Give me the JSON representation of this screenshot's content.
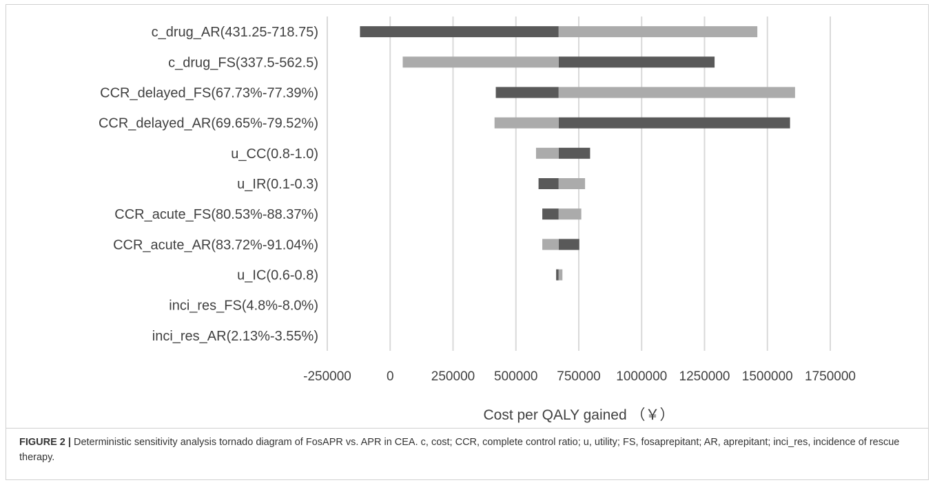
{
  "chart_data": {
    "type": "bar",
    "orientation": "horizontal",
    "subtype": "tornado",
    "base_value": 670000,
    "categories": [
      "c_drug_AR(431.25-718.75)",
      "c_drug_FS(337.5-562.5)",
      "CCR_delayed_FS(67.73%-77.39%)",
      "CCR_delayed_AR(69.65%-79.52%)",
      "u_CC(0.8-1.0)",
      "u_IR(0.1-0.3)",
      "CCR_acute_FS(80.53%-88.37%)",
      "CCR_acute_AR(83.72%-91.04%)",
      "u_IC(0.6-0.8)",
      "inci_res_FS(4.8%-8.0%)",
      "inci_res_AR(2.13%-3.55%)"
    ],
    "series": [
      {
        "color": "#595959",
        "values": [
          -120000,
          1290000,
          420000,
          1590000,
          795000,
          590000,
          605000,
          752000,
          660000,
          670000,
          670000
        ]
      },
      {
        "color": "#ababab",
        "values": [
          1460000,
          50000,
          1610000,
          415000,
          580000,
          775000,
          760000,
          605000,
          685000,
          670000,
          670000
        ]
      }
    ],
    "xlim": [
      -250000,
      1750000
    ],
    "xticks": [
      -250000,
      0,
      250000,
      500000,
      750000,
      1000000,
      1250000,
      1500000,
      1750000
    ],
    "xtick_labels": [
      "-250000",
      "0",
      "250000",
      "500000",
      "750000",
      "1000000",
      "1250000",
      "1500000",
      "1750000"
    ],
    "xlabel": "Cost per QALY gained （￥）",
    "grid": "vertical"
  },
  "caption": {
    "label": "FIGURE 2 |",
    "text": " Deterministic sensitivity analysis tornado diagram of FosAPR vs. APR in CEA. c, cost; CCR, complete control ratio; u, utility; FS, fosaprepitant; AR, aprepitant; inci_res, incidence of rescue therapy."
  }
}
